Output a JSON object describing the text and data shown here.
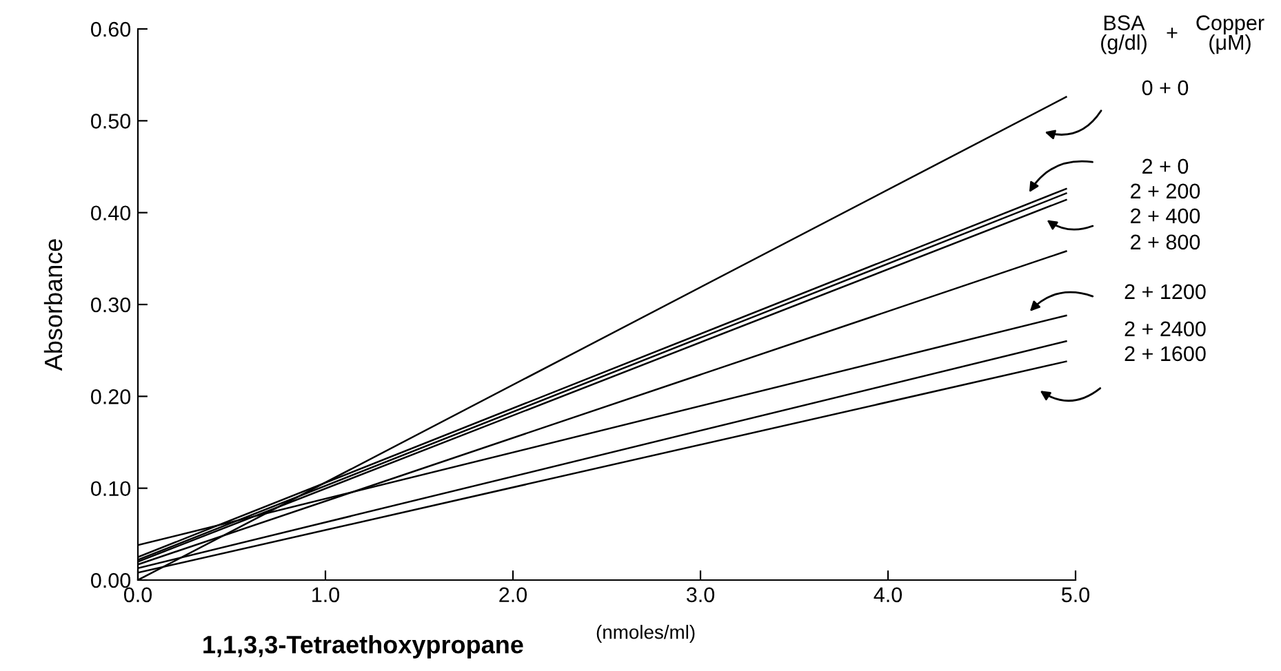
{
  "chart_data": {
    "type": "line",
    "xlabel": "1,1,3,3-Tetraethoxypropane",
    "ylabel": "Absorbance",
    "xlim": [
      0,
      5
    ],
    "ylim": [
      0,
      0.6
    ],
    "xticks": [
      {
        "value": 0,
        "label": "0.0"
      },
      {
        "value": 1,
        "label": "1.0"
      },
      {
        "value": 2,
        "label": "2.0"
      },
      {
        "value": 3,
        "label": "3.0"
      },
      {
        "value": 4,
        "label": "4.0"
      },
      {
        "value": 5,
        "label": "5.0"
      }
    ],
    "yticks": [
      {
        "value": 0,
        "label": "0.00"
      },
      {
        "value": 0.1,
        "label": "0.10"
      },
      {
        "value": 0.2,
        "label": "0.20"
      },
      {
        "value": 0.3,
        "label": "0.30"
      },
      {
        "value": 0.4,
        "label": "0.40"
      },
      {
        "value": 0.5,
        "label": "0.50"
      },
      {
        "value": 0.6,
        "label": "0.60"
      }
    ],
    "x": [
      0,
      4.95
    ],
    "series": [
      {
        "name": "0 + 0",
        "color": "#000000",
        "values": [
          0.0,
          0.526
        ]
      },
      {
        "name": "2 + 0",
        "color": "#000000",
        "values": [
          0.025,
          0.426
        ]
      },
      {
        "name": "2 + 200",
        "color": "#000000",
        "values": [
          0.022,
          0.421
        ]
      },
      {
        "name": "2 + 400",
        "color": "#000000",
        "values": [
          0.02,
          0.414
        ]
      },
      {
        "name": "2 + 800",
        "color": "#000000",
        "values": [
          0.017,
          0.358
        ]
      },
      {
        "name": "2 + 1200",
        "color": "#000000",
        "values": [
          0.038,
          0.288
        ]
      },
      {
        "name": "2 + 2400",
        "color": "#000000",
        "values": [
          0.013,
          0.26
        ]
      },
      {
        "name": "2 + 1600",
        "color": "#000000",
        "values": [
          0.008,
          0.238
        ]
      }
    ],
    "annotations": [
      "(nmoles/ml)",
      "BSA\n(g/dl)",
      "+",
      "Copper\n(μM)"
    ],
    "grid": false,
    "legend": "right",
    "marker": "none",
    "line_style": "solid"
  }
}
